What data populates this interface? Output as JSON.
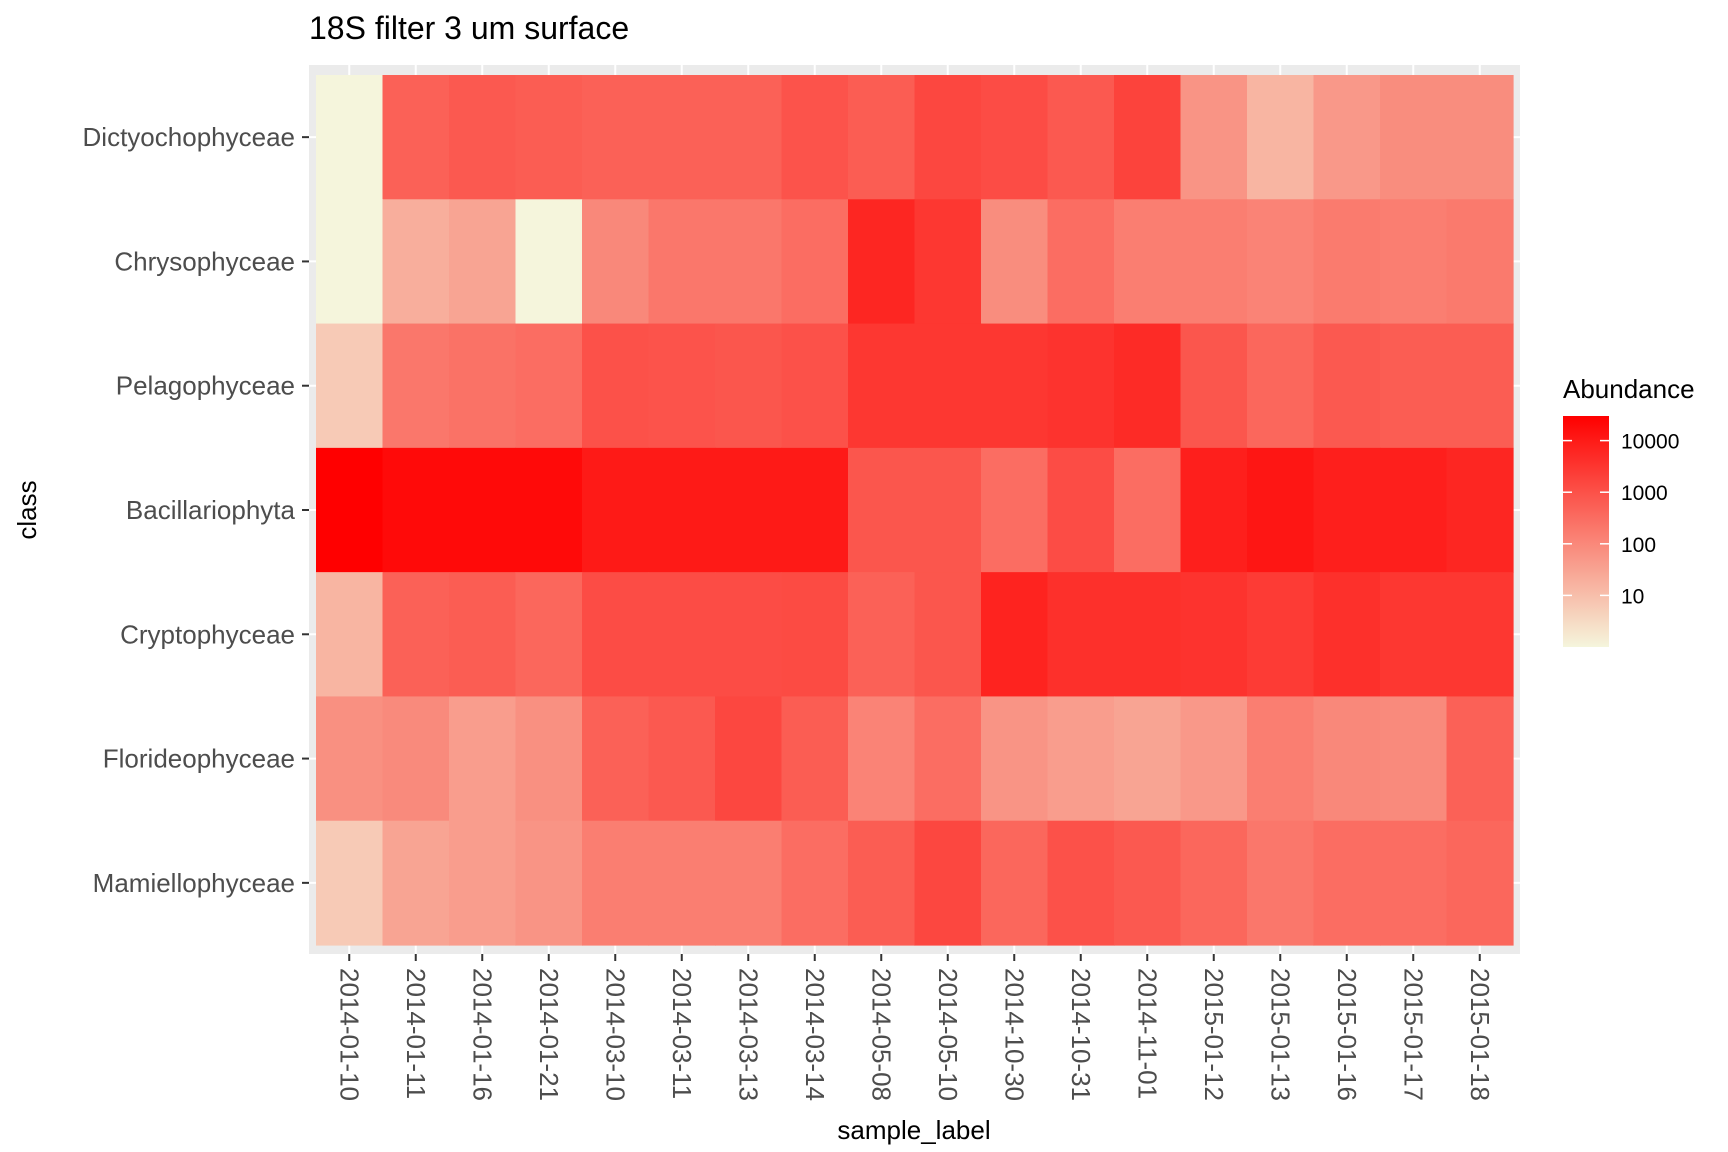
{
  "chart_data": {
    "type": "heatmap",
    "title": "18S filter 3 um surface",
    "xlabel": "sample_label",
    "ylabel": "class",
    "x": [
      "2014-01-10",
      "2014-01-11",
      "2014-01-16",
      "2014-01-21",
      "2014-03-10",
      "2014-03-11",
      "2014-03-13",
      "2014-03-14",
      "2014-05-08",
      "2014-05-10",
      "2014-10-30",
      "2014-10-31",
      "2014-11-01",
      "2015-01-12",
      "2015-01-13",
      "2015-01-16",
      "2015-01-17",
      "2015-01-18"
    ],
    "y": [
      "Dictyochophyceae",
      "Chrysophyceae",
      "Pelagophyceae",
      "Bacillariophyta",
      "Cryptophyceae",
      "Florideophyceae",
      "Mamiellophyceae"
    ],
    "values": [
      [
        1,
        500,
        700,
        600,
        500,
        500,
        500,
        900,
        600,
        1500,
        1200,
        700,
        1800,
        60,
        15,
        50,
        80,
        80
      ],
      [
        1,
        20,
        30,
        1,
        100,
        200,
        200,
        300,
        6000,
        3000,
        80,
        300,
        150,
        150,
        120,
        170,
        150,
        180
      ],
      [
        6,
        200,
        250,
        300,
        1000,
        900,
        800,
        1000,
        3000,
        3000,
        3000,
        3500,
        5000,
        800,
        400,
        700,
        600,
        600
      ],
      [
        30000,
        20000,
        20000,
        20000,
        10000,
        10000,
        10000,
        10000,
        800,
        800,
        300,
        1200,
        300,
        8000,
        12000,
        8000,
        8000,
        6000
      ],
      [
        15,
        500,
        600,
        400,
        1200,
        1200,
        1200,
        1300,
        500,
        800,
        7000,
        4000,
        4000,
        3500,
        2500,
        4000,
        3000,
        3000
      ],
      [
        70,
        90,
        40,
        70,
        500,
        700,
        1500,
        600,
        120,
        300,
        60,
        40,
        30,
        50,
        150,
        100,
        90,
        500
      ],
      [
        6,
        30,
        40,
        60,
        150,
        150,
        150,
        300,
        600,
        1500,
        400,
        1000,
        700,
        400,
        200,
        300,
        300,
        400
      ]
    ],
    "color_scale": {
      "type": "log10",
      "domain": [
        1,
        30000
      ],
      "low_color": "#f5f5dc",
      "high_color": "#ff0000"
    },
    "legend": {
      "title": "Abundance",
      "ticks": [
        10000,
        1000,
        100,
        10
      ],
      "tick_labels": [
        "10000",
        "1000",
        "100",
        "10"
      ],
      "position": "right"
    },
    "panel_background": "#ebebeb",
    "grid": true
  }
}
